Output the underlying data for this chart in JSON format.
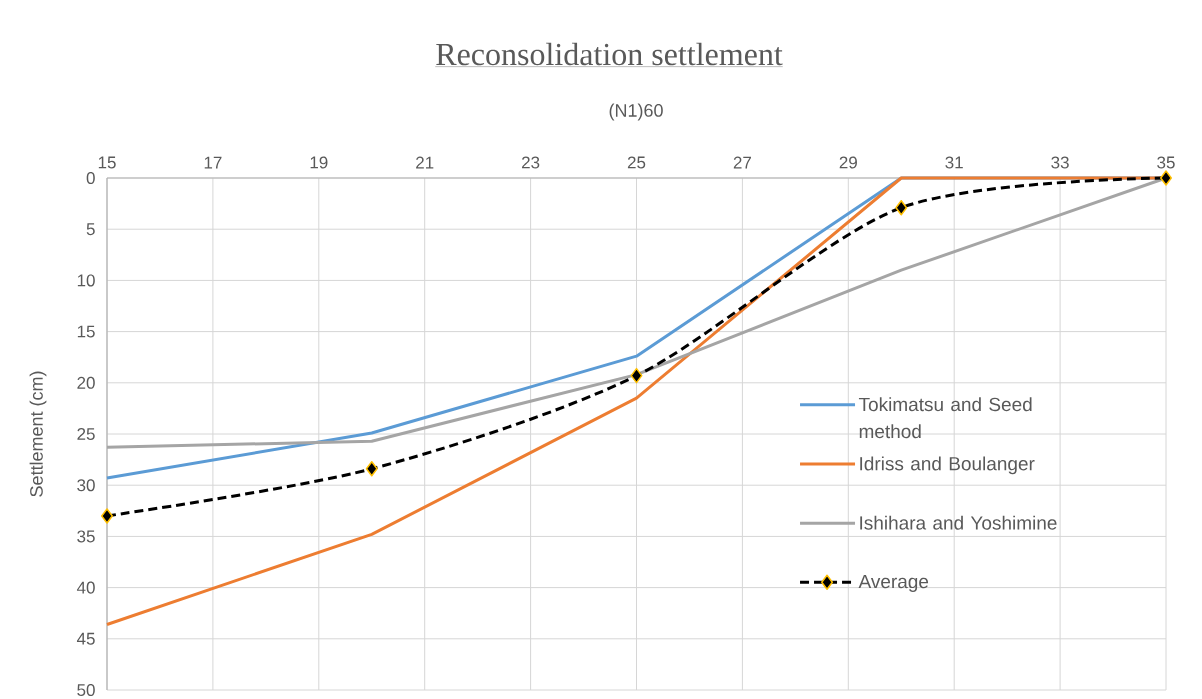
{
  "chart_data": {
    "type": "line",
    "title": "Reconsolidation settlement",
    "xlabel": "(N1)60",
    "ylabel": "Settlement (cm)",
    "x": [
      15,
      20,
      25,
      30,
      35
    ],
    "series": [
      {
        "name": "Tokimatsu and Seed method",
        "color": "#5b9bd5",
        "values": [
          29.3,
          24.9,
          17.4,
          0,
          0
        ]
      },
      {
        "name": "Idriss and Boulanger",
        "color": "#ed7d31",
        "values": [
          43.6,
          34.8,
          21.5,
          0,
          0
        ]
      },
      {
        "name": "Ishihara and Yoshimine",
        "color": "#a5a5a5",
        "values": [
          26.3,
          25.7,
          19.2,
          9.0,
          0
        ]
      },
      {
        "name": "Average",
        "color": "#000000",
        "values": [
          33.0,
          28.4,
          19.3,
          2.9,
          0
        ],
        "marker": "diamond",
        "line_style": "dashed"
      }
    ],
    "xlim": [
      15,
      35
    ],
    "xticks": [
      15,
      17,
      19,
      21,
      23,
      25,
      27,
      29,
      31,
      33,
      35
    ],
    "ylim": [
      50,
      0
    ],
    "yticks": [
      0,
      5,
      10,
      15,
      20,
      25,
      30,
      35,
      40,
      45,
      50
    ],
    "grid": true,
    "legend": "right",
    "marker": "none",
    "line_style": "solid"
  }
}
